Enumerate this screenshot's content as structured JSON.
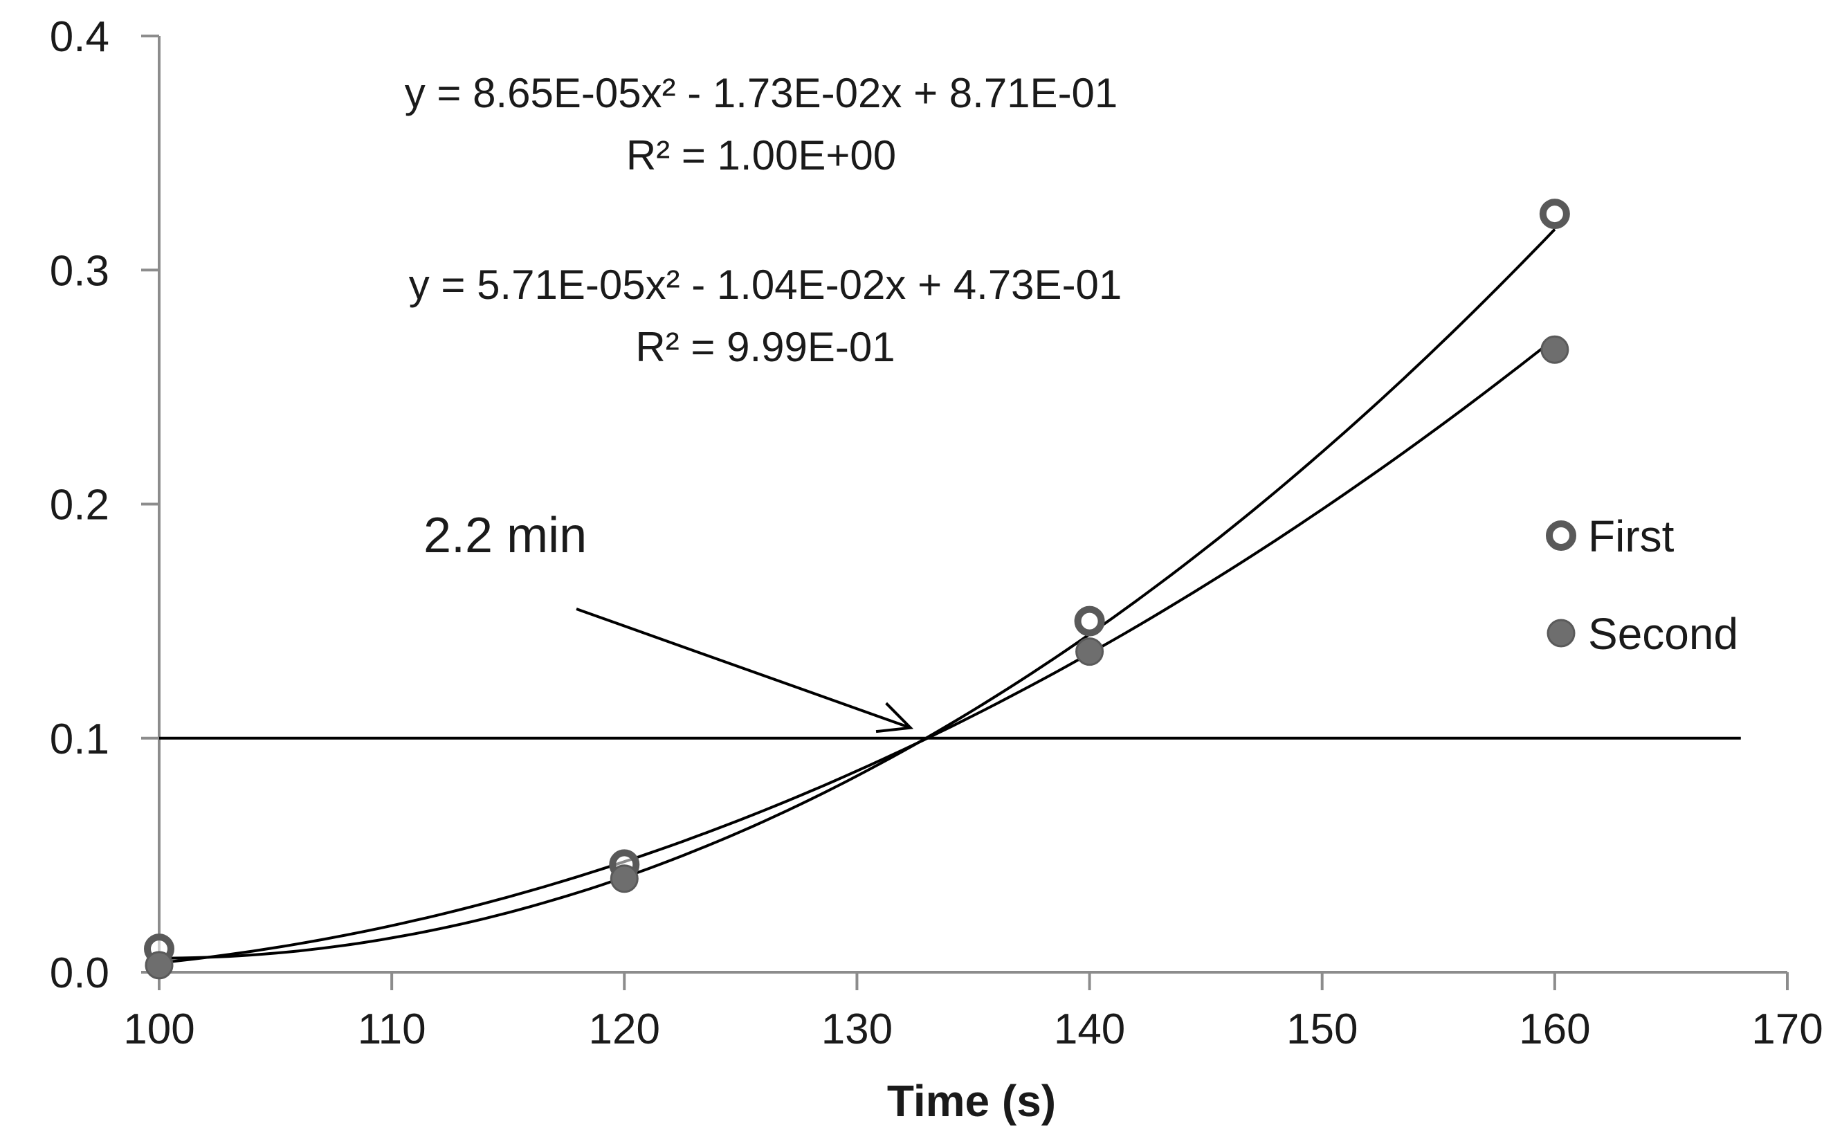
{
  "chart_data": {
    "type": "scatter",
    "xlabel": "Time (s)",
    "ylabel": "",
    "xlim": [
      100,
      170
    ],
    "ylim": [
      0,
      0.4
    ],
    "x_ticks": [
      "100",
      "110",
      "120",
      "130",
      "140",
      "150",
      "160",
      "170"
    ],
    "y_ticks": [
      "0.0",
      "0.1",
      "0.2",
      "0.3",
      "0.4"
    ],
    "legend_position": "right",
    "series": [
      {
        "name": "First",
        "marker": "open-circle",
        "color": "#595959",
        "x": [
          100,
          120,
          140,
          160
        ],
        "y": [
          0.01,
          0.046,
          0.15,
          0.324
        ],
        "trendline": {
          "kind": "polynomial-2",
          "coefficients": [
            8.65e-05,
            -0.0173,
            0.871
          ],
          "equation": "y = 8.65E-05x² - 1.73E-02x + 8.71E-01",
          "r2": "R² = 1.00E+00"
        }
      },
      {
        "name": "Second",
        "marker": "filled-circle",
        "color": "#6e6e6e",
        "x": [
          100,
          120,
          140,
          160
        ],
        "y": [
          0.003,
          0.04,
          0.137,
          0.266
        ],
        "trendline": {
          "kind": "polynomial-2",
          "coefficients": [
            5.71e-05,
            -0.0104,
            0.473
          ],
          "equation": "y = 5.71E-05x² - 1.04E-02x + 4.73E-01",
          "r2": "R² = 9.99E-01"
        }
      }
    ],
    "threshold_line": {
      "y": 0.1,
      "x_from": 100,
      "x_to": 168
    },
    "annotation": {
      "text": "2.2 min",
      "arrow_to_x": 132.3,
      "arrow_to_y": 0.1
    }
  }
}
